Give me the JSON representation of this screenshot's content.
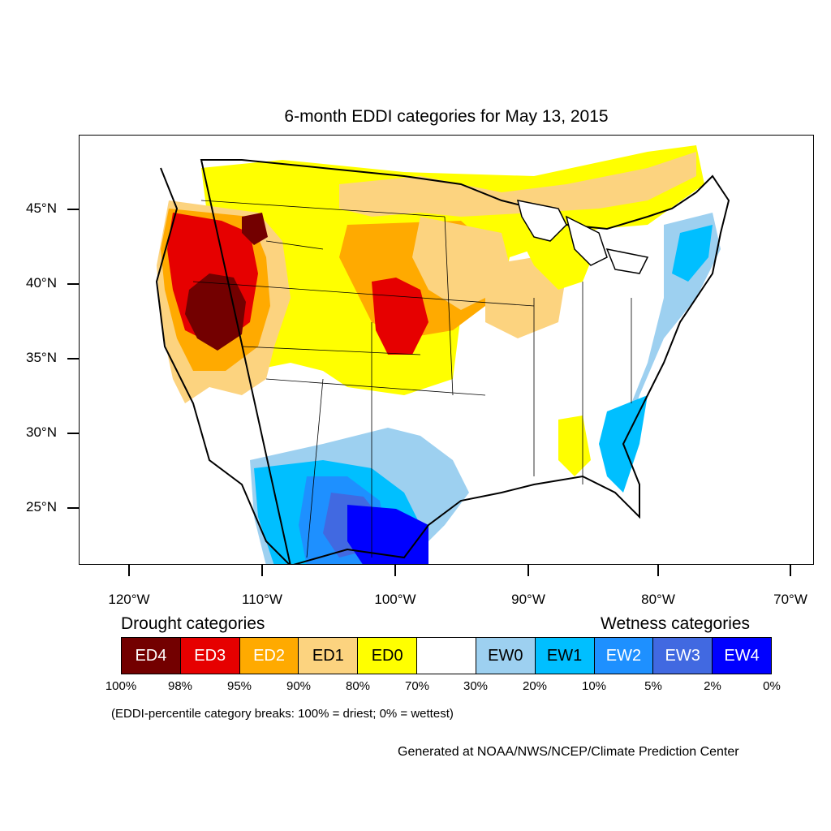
{
  "title": "6-month EDDI categories for May 13, 2015",
  "latitude_labels": [
    "45°N",
    "40°N",
    "35°N",
    "30°N",
    "25°N"
  ],
  "longitude_labels": [
    "120°W",
    "110°W",
    "100°W",
    "90°W",
    "80°W",
    "70°W"
  ],
  "legend": {
    "drought_title": "Drought categories",
    "wetness_title": "Wetness categories",
    "categories": [
      {
        "label": "ED4",
        "color": "#730000",
        "text_color": "#ffffff"
      },
      {
        "label": "ED3",
        "color": "#e60000",
        "text_color": "#ffffff"
      },
      {
        "label": "ED2",
        "color": "#ffaa00",
        "text_color": "#ffffff"
      },
      {
        "label": "ED1",
        "color": "#fcd37f",
        "text_color": "#000000"
      },
      {
        "label": "ED0",
        "color": "#ffff00",
        "text_color": "#000000"
      },
      {
        "label": "",
        "color": "#ffffff",
        "text_color": "#000000"
      },
      {
        "label": "EW0",
        "color": "#9dd0f0",
        "text_color": "#000000"
      },
      {
        "label": "EW1",
        "color": "#00bfff",
        "text_color": "#000000"
      },
      {
        "label": "EW2",
        "color": "#1e90ff",
        "text_color": "#ffffff"
      },
      {
        "label": "EW3",
        "color": "#4169e1",
        "text_color": "#ffffff"
      },
      {
        "label": "EW4",
        "color": "#0000ff",
        "text_color": "#ffffff"
      }
    ],
    "breaks": [
      "100%",
      "98%",
      "95%",
      "90%",
      "80%",
      "70%",
      "30%",
      "20%",
      "10%",
      "5%",
      "2%",
      "0%"
    ]
  },
  "breaks_note": "(EDDI-percentile category breaks: 100% = driest; 0% = wettest)",
  "credit": "Generated at NOAA/NWS/NCEP/Climate Prediction Center"
}
